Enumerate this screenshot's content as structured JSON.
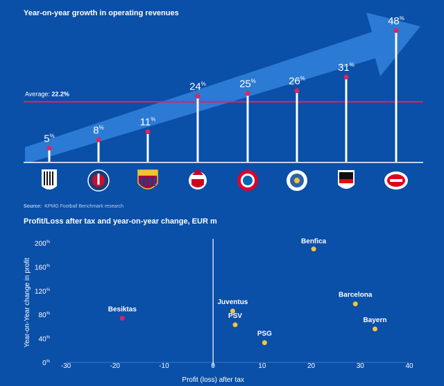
{
  "chart1": {
    "title": "Year-on-year growth in operating revenues",
    "average_label": "Average:",
    "average_value": "22.2%",
    "average": 22.2,
    "colors": {
      "bg": "#0a4fa8",
      "arrow": "#2f7ed8",
      "stem": "#ffffff",
      "point": "#e0245e",
      "avg_line": "#e0245e"
    },
    "clubs": [
      {
        "name": "Juventus",
        "value": 5,
        "label": "5",
        "icon": "juventus-crest-icon"
      },
      {
        "name": "PSG",
        "value": 8,
        "label": "8",
        "icon": "psg-crest-icon"
      },
      {
        "name": "Barcelona",
        "value": 11,
        "label": "11",
        "icon": "barcelona-crest-icon"
      },
      {
        "name": "Benfica",
        "value": 24,
        "label": "24",
        "icon": "benfica-crest-icon"
      },
      {
        "name": "Bayern",
        "value": 25,
        "label": "25",
        "icon": "bayern-crest-icon"
      },
      {
        "name": "Porto",
        "value": 26,
        "label": "26",
        "icon": "porto-crest-icon"
      },
      {
        "name": "Besiktas",
        "value": 31,
        "label": "31",
        "icon": "besiktas-crest-icon"
      },
      {
        "name": "PSV",
        "value": 48,
        "label": "48",
        "icon": "psv-crest-icon"
      }
    ],
    "percent_sign": "%"
  },
  "source": {
    "label": "Source:",
    "text": "KPMG Football Benchmark research"
  },
  "chart_data": {
    "type": "scatter",
    "title": "Profit/Loss after tax and year-on-year change, EUR m",
    "xlabel": "Profit (loss) after tax",
    "ylabel": "Year-on-Year change in profit",
    "xlim": [
      -30,
      40
    ],
    "ylim": [
      0,
      200
    ],
    "x_ticks": [
      -30,
      -20,
      -10,
      0,
      10,
      20,
      30,
      40
    ],
    "y_ticks": [
      0,
      40,
      80,
      120,
      160,
      200
    ],
    "y_tick_suffix": "%",
    "colors": {
      "point": "#f5c242",
      "highlight": "#e0245e",
      "axis": "#ffffff",
      "grid": "#3a78c9"
    },
    "points": [
      {
        "label": "Benfica",
        "x": 20.5,
        "y": 190
      },
      {
        "label": "Barcelona",
        "x": 29,
        "y": 98
      },
      {
        "label": "Juventus",
        "x": 4,
        "y": 86
      },
      {
        "label": "PSV",
        "x": 4.5,
        "y": 63
      },
      {
        "label": "Bayern",
        "x": 33,
        "y": 56
      },
      {
        "label": "PSG",
        "x": 10.5,
        "y": 33
      },
      {
        "label": "Besiktas",
        "x": -18.5,
        "y": 74,
        "highlight": true
      }
    ]
  }
}
